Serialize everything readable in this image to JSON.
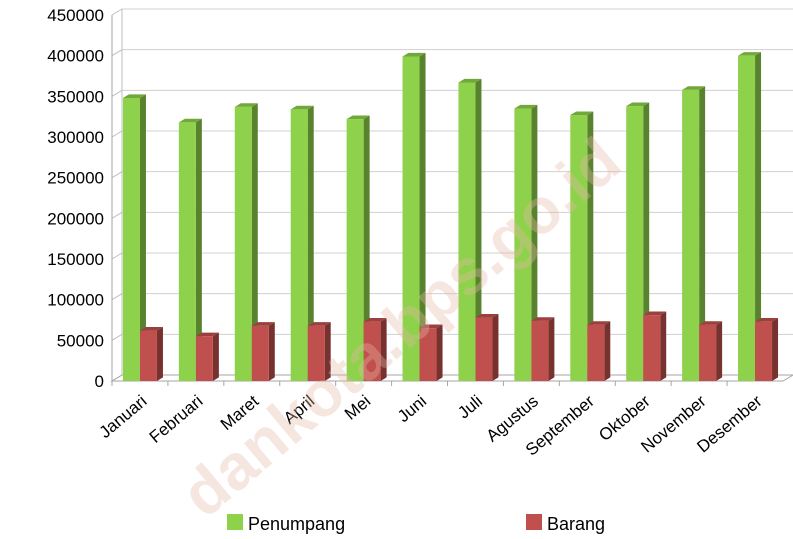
{
  "chart_data": {
    "type": "bar",
    "categories": [
      "Januari",
      "Februari",
      "Maret",
      "April",
      "Mei",
      "Juni",
      "Juli",
      "Agustus",
      "September",
      "Oktober",
      "November",
      "Desember"
    ],
    "series": [
      {
        "name": "Penumpang",
        "color": "#8ed14a",
        "values": [
          348000,
          318000,
          337000,
          334000,
          322000,
          399000,
          367000,
          335000,
          327000,
          338000,
          358000,
          400000
        ]
      },
      {
        "name": "Barang",
        "color": "#c0504d",
        "values": [
          62000,
          55000,
          68000,
          68000,
          73000,
          65000,
          78000,
          74000,
          69000,
          81000,
          69000,
          73000
        ]
      }
    ],
    "ylim": [
      0,
      450000
    ],
    "yticks": [
      0,
      50000,
      100000,
      150000,
      200000,
      250000,
      300000,
      350000,
      400000,
      450000
    ],
    "grid": true,
    "legend_position": "bottom",
    "style": "3d-column"
  },
  "watermark": "dankota.bps.go.id"
}
